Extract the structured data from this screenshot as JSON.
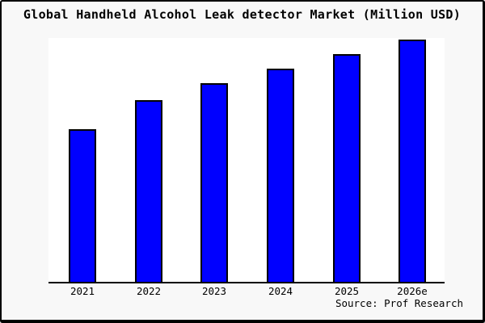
{
  "source": "Source: Prof Research",
  "colors": {
    "background": "#f8f8f8",
    "plot_background": "#ffffff",
    "bar_fill": "#0000ff",
    "bar_edge": "#000000",
    "axis": "#000000",
    "border": "#000000",
    "text": "#000000"
  },
  "chart_data": {
    "type": "bar",
    "title": "Global Handheld Alcohol Leak detector Market (Million USD)",
    "categories": [
      "2021",
      "2022",
      "2023",
      "2024",
      "2025",
      "2026e"
    ],
    "values": [
      63,
      75,
      82,
      88,
      94,
      100
    ],
    "value_scale": "relative units, no y-axis labels shown (tallest bar = 100)",
    "xlabel": "",
    "ylabel": "",
    "ylim": [
      0,
      101
    ],
    "grid": false,
    "legend": "none",
    "y_axis_ticks": "none",
    "visible_spines": [
      "bottom"
    ],
    "annotation": "Source: Prof Research"
  }
}
